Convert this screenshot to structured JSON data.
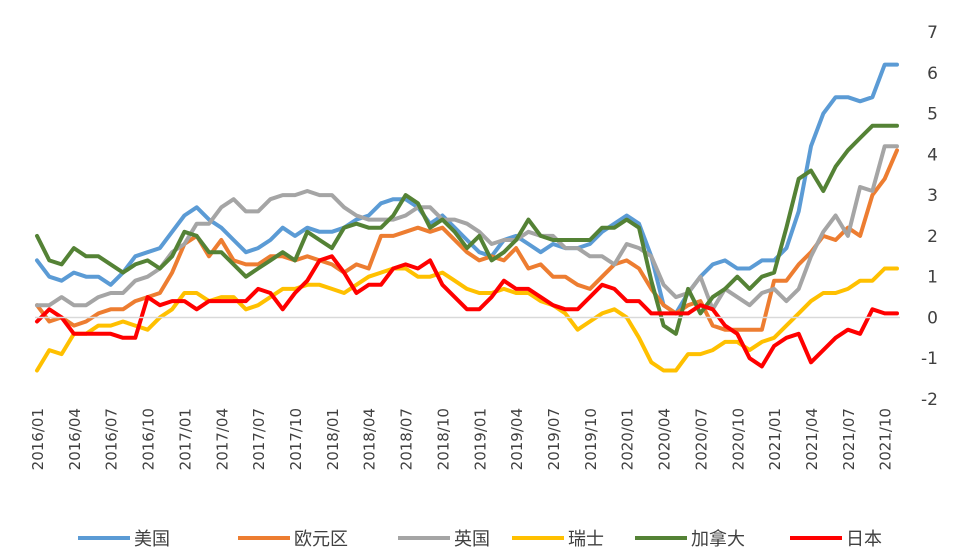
{
  "chart_data": {
    "type": "line",
    "title": "",
    "xlabel": "",
    "ylabel": "",
    "ylim": [
      -2,
      7
    ],
    "yticks": [
      -2,
      -1,
      0,
      1,
      2,
      3,
      4,
      5,
      6,
      7
    ],
    "grid": false,
    "legend_position": "bottom",
    "x_tick_labels": [
      "2016/01",
      "2016/04",
      "2016/07",
      "2016/10",
      "2017/01",
      "2017/04",
      "2017/07",
      "2017/10",
      "2018/01",
      "2018/04",
      "2018/07",
      "2018/10",
      "2019/01",
      "2019/04",
      "2019/07",
      "2019/10",
      "2020/01",
      "2020/04",
      "2020/07",
      "2020/10",
      "2021/01",
      "2021/04",
      "2021/07",
      "2021/10"
    ],
    "series": [
      {
        "name": "美国",
        "color": "#5B9BD5",
        "values": [
          1.4,
          1.0,
          0.9,
          1.1,
          1.0,
          1.0,
          0.8,
          1.1,
          1.5,
          1.6,
          1.7,
          2.1,
          2.5,
          2.7,
          2.4,
          2.2,
          1.9,
          1.6,
          1.7,
          1.9,
          2.2,
          2.0,
          2.2,
          2.1,
          2.1,
          2.2,
          2.4,
          2.5,
          2.8,
          2.9,
          2.9,
          2.7,
          2.3,
          2.5,
          2.2,
          1.9,
          1.6,
          1.5,
          1.9,
          2.0,
          1.8,
          1.6,
          1.8,
          1.7,
          1.7,
          1.8,
          2.1,
          2.3,
          2.5,
          2.3,
          1.5,
          0.3,
          0.1,
          0.6,
          1.0,
          1.3,
          1.4,
          1.2,
          1.2,
          1.4,
          1.4,
          1.7,
          2.6,
          4.2,
          5.0,
          5.4,
          5.4,
          5.3,
          5.4,
          6.2,
          6.2
        ]
      },
      {
        "name": "欧元区",
        "color": "#ED7D31",
        "values": [
          0.3,
          -0.1,
          0.0,
          -0.2,
          -0.1,
          0.1,
          0.2,
          0.2,
          0.4,
          0.5,
          0.6,
          1.1,
          1.8,
          2.0,
          1.5,
          1.9,
          1.4,
          1.3,
          1.3,
          1.5,
          1.5,
          1.4,
          1.5,
          1.4,
          1.3,
          1.1,
          1.3,
          1.2,
          2.0,
          2.0,
          2.1,
          2.2,
          2.1,
          2.2,
          1.9,
          1.6,
          1.4,
          1.5,
          1.4,
          1.7,
          1.2,
          1.3,
          1.0,
          1.0,
          0.8,
          0.7,
          1.0,
          1.3,
          1.4,
          1.2,
          0.7,
          0.3,
          0.1,
          0.3,
          0.4,
          -0.2,
          -0.3,
          -0.3,
          -0.3,
          -0.3,
          0.9,
          0.9,
          1.3,
          1.6,
          2.0,
          1.9,
          2.2,
          2.0,
          3.0,
          3.4,
          4.1
        ]
      },
      {
        "name": "英国",
        "color": "#A5A5A5",
        "values": [
          0.3,
          0.3,
          0.5,
          0.3,
          0.3,
          0.5,
          0.6,
          0.6,
          0.9,
          1.0,
          1.2,
          1.6,
          1.8,
          2.3,
          2.3,
          2.7,
          2.9,
          2.6,
          2.6,
          2.9,
          3.0,
          3.0,
          3.1,
          3.0,
          3.0,
          2.7,
          2.5,
          2.4,
          2.4,
          2.4,
          2.5,
          2.7,
          2.7,
          2.4,
          2.4,
          2.3,
          2.1,
          1.8,
          1.9,
          1.9,
          2.1,
          2.0,
          2.0,
          1.7,
          1.7,
          1.5,
          1.5,
          1.3,
          1.8,
          1.7,
          1.5,
          0.8,
          0.5,
          0.6,
          1.0,
          0.2,
          0.7,
          0.5,
          0.3,
          0.6,
          0.7,
          0.4,
          0.7,
          1.5,
          2.1,
          2.5,
          2.0,
          3.2,
          3.1,
          4.2,
          4.2
        ]
      },
      {
        "name": "瑞士",
        "color": "#FFC000",
        "values": [
          -1.3,
          -0.8,
          -0.9,
          -0.4,
          -0.4,
          -0.2,
          -0.2,
          -0.1,
          -0.2,
          -0.3,
          0.0,
          0.2,
          0.6,
          0.6,
          0.4,
          0.5,
          0.5,
          0.2,
          0.3,
          0.5,
          0.7,
          0.7,
          0.8,
          0.8,
          0.7,
          0.6,
          0.8,
          1.0,
          1.1,
          1.2,
          1.2,
          1.0,
          1.0,
          1.1,
          0.9,
          0.7,
          0.6,
          0.6,
          0.7,
          0.6,
          0.6,
          0.4,
          0.3,
          0.1,
          -0.3,
          -0.1,
          0.1,
          0.2,
          0.0,
          -0.5,
          -1.1,
          -1.3,
          -1.3,
          -0.9,
          -0.9,
          -0.8,
          -0.6,
          -0.6,
          -0.8,
          -0.6,
          -0.5,
          -0.2,
          0.1,
          0.4,
          0.6,
          0.6,
          0.7,
          0.9,
          0.9,
          1.2,
          1.2
        ]
      },
      {
        "name": "加拿大",
        "color": "#548235",
        "values": [
          2.0,
          1.4,
          1.3,
          1.7,
          1.5,
          1.5,
          1.3,
          1.1,
          1.3,
          1.4,
          1.2,
          1.5,
          2.1,
          2.0,
          1.6,
          1.6,
          1.3,
          1.0,
          1.2,
          1.4,
          1.6,
          1.4,
          2.1,
          1.9,
          1.7,
          2.2,
          2.3,
          2.2,
          2.2,
          2.5,
          3.0,
          2.8,
          2.2,
          2.4,
          2.1,
          1.7,
          2.0,
          1.4,
          1.6,
          1.9,
          2.4,
          2.0,
          1.9,
          1.9,
          1.9,
          1.9,
          2.2,
          2.2,
          2.4,
          2.2,
          0.9,
          -0.2,
          -0.4,
          0.7,
          0.1,
          0.5,
          0.7,
          1.0,
          0.7,
          1.0,
          1.1,
          2.2,
          3.4,
          3.6,
          3.1,
          3.7,
          4.1,
          4.4,
          4.7,
          4.7,
          4.7
        ]
      },
      {
        "name": "日本",
        "color": "#FF0000",
        "values": [
          -0.1,
          0.2,
          0.0,
          -0.4,
          -0.4,
          -0.4,
          -0.4,
          -0.5,
          -0.5,
          0.5,
          0.3,
          0.4,
          0.4,
          0.2,
          0.4,
          0.4,
          0.4,
          0.4,
          0.7,
          0.6,
          0.2,
          0.6,
          0.9,
          1.4,
          1.5,
          1.1,
          0.6,
          0.8,
          0.8,
          1.2,
          1.3,
          1.2,
          1.4,
          0.8,
          0.5,
          0.2,
          0.2,
          0.5,
          0.9,
          0.7,
          0.7,
          0.5,
          0.3,
          0.2,
          0.2,
          0.5,
          0.8,
          0.7,
          0.4,
          0.4,
          0.1,
          0.1,
          0.1,
          0.1,
          0.3,
          0.2,
          -0.2,
          -0.4,
          -1.0,
          -1.2,
          -0.7,
          -0.5,
          -0.4,
          -1.1,
          -0.8,
          -0.5,
          -0.3,
          -0.4,
          0.2,
          0.1,
          0.1
        ]
      }
    ]
  }
}
